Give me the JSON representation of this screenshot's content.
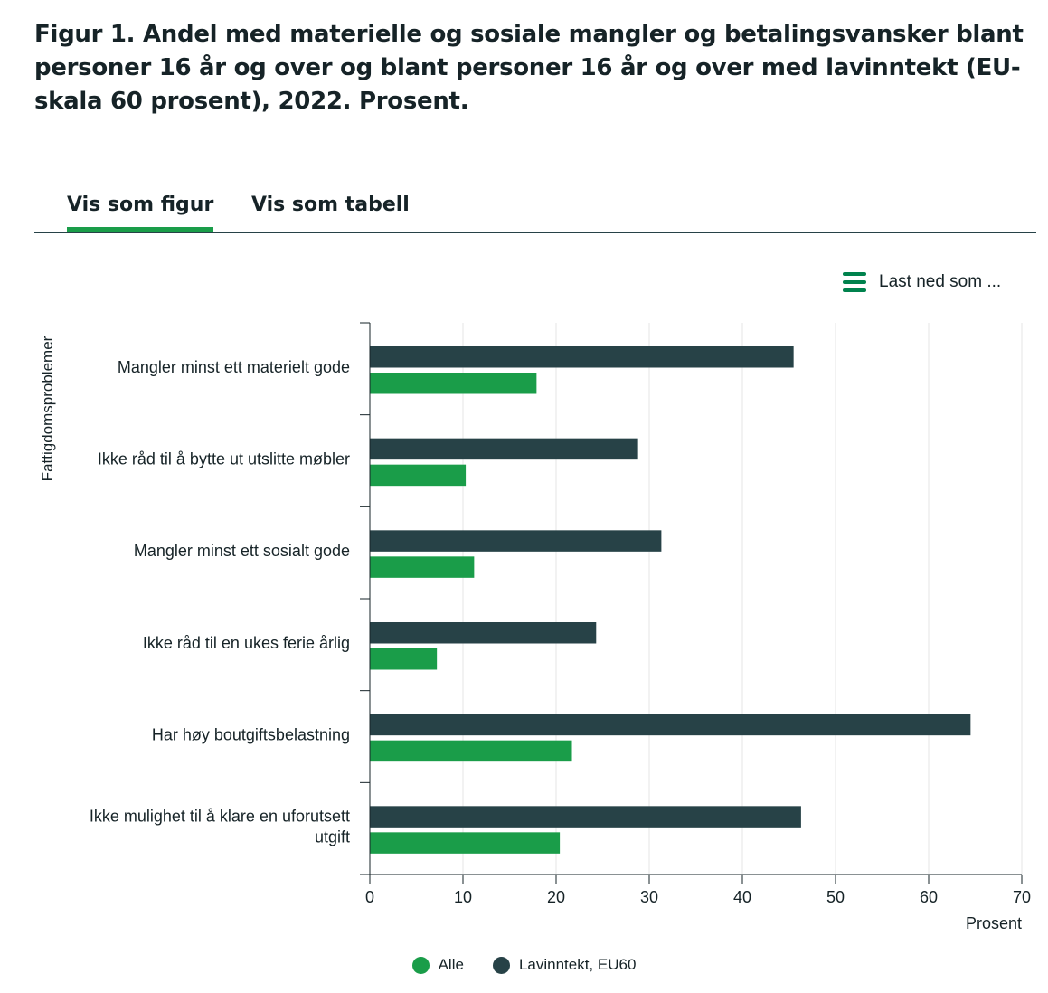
{
  "title": "Figur 1. Andel med materielle og sosiale mangler og betalingsvansker blant personer 16 år og over og blant personer 16 år og over med lavinntekt (EU-skala 60 prosent), 2022. Prosent.",
  "tabs": [
    {
      "label": "Vis som figur",
      "active": true
    },
    {
      "label": "Vis som tabell",
      "active": false
    }
  ],
  "download": {
    "label": "Last ned som ...",
    "icon": "menu-icon"
  },
  "colors": {
    "alle": "#1a9d49",
    "lavinntekt": "#274247",
    "accent": "#1a9d49",
    "grid": "#e6e6e6",
    "axis": "#162327"
  },
  "chart_data": {
    "type": "bar",
    "orientation": "horizontal",
    "categories": [
      "Mangler minst ett materielt gode",
      "Ikke råd til å bytte ut utslitte møbler",
      "Mangler minst ett sosialt gode",
      "Ikke råd til en ukes ferie årlig",
      "Har høy boutgiftsbelastning",
      "Ikke mulighet til å klare en uforutsett utgift"
    ],
    "series": [
      {
        "name": "Lavinntekt, EU60",
        "color": "#274247",
        "values": [
          45.5,
          28.8,
          31.3,
          24.3,
          64.5,
          46.3
        ]
      },
      {
        "name": "Alle",
        "color": "#1a9d49",
        "values": [
          17.9,
          10.3,
          11.2,
          7.2,
          21.7,
          20.4
        ]
      }
    ],
    "xlabel": "Prosent",
    "ylabel": "Fattigdomsproblemer",
    "xlim": [
      0,
      70
    ],
    "xticks": [
      0,
      10,
      20,
      30,
      40,
      50,
      60,
      70
    ],
    "grid": true,
    "legend": {
      "placement": "bottom",
      "items": [
        {
          "name": "Alle",
          "color": "#1a9d49"
        },
        {
          "name": "Lavinntekt, EU60",
          "color": "#274247"
        }
      ]
    }
  }
}
